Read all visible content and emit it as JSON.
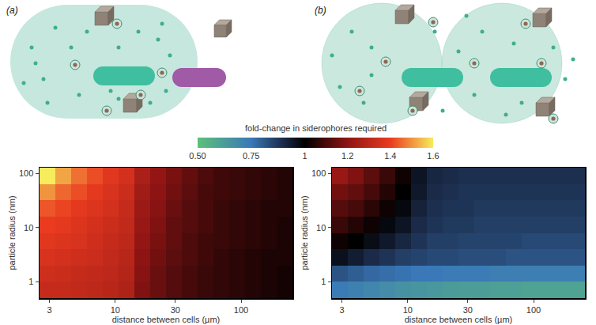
{
  "chart_data": [
    {
      "type": "heatmap",
      "title": "(a)",
      "x_label": "distance between cells (µm)",
      "y_label": "particle radius (nm)",
      "log": true,
      "x_bins": [
        2.5,
        3.34,
        4.46,
        5.96,
        7.96,
        10.6,
        14.2,
        19.0,
        25.3,
        33.8,
        45.2,
        60.3,
        80.6,
        108,
        144,
        192,
        256
      ],
      "y_bins": [
        0.5,
        1,
        2,
        4,
        8,
        16,
        32,
        64,
        128
      ],
      "xlim": [
        2.5,
        256
      ],
      "xticks": [
        3,
        10,
        30,
        100
      ],
      "ylim": [
        0.5,
        128
      ],
      "yticks": [
        1,
        10,
        100
      ],
      "z": [
        [
          1.32,
          1.32,
          1.31,
          1.3,
          1.29,
          1.27,
          1.18,
          1.15,
          1.12,
          1.1,
          1.08,
          1.07,
          1.06,
          1.05,
          1.04,
          1.03
        ],
        [
          1.34,
          1.33,
          1.32,
          1.31,
          1.3,
          1.28,
          1.19,
          1.15,
          1.12,
          1.1,
          1.08,
          1.07,
          1.06,
          1.05,
          1.04,
          1.03
        ],
        [
          1.36,
          1.35,
          1.34,
          1.33,
          1.31,
          1.29,
          1.2,
          1.16,
          1.13,
          1.11,
          1.09,
          1.07,
          1.06,
          1.05,
          1.04,
          1.04
        ],
        [
          1.38,
          1.37,
          1.36,
          1.34,
          1.32,
          1.3,
          1.21,
          1.17,
          1.14,
          1.11,
          1.09,
          1.08,
          1.07,
          1.06,
          1.05,
          1.04
        ],
        [
          1.4,
          1.39,
          1.37,
          1.35,
          1.33,
          1.31,
          1.22,
          1.18,
          1.14,
          1.12,
          1.1,
          1.08,
          1.07,
          1.06,
          1.05,
          1.04
        ],
        [
          1.43,
          1.41,
          1.39,
          1.37,
          1.35,
          1.32,
          1.23,
          1.19,
          1.15,
          1.12,
          1.1,
          1.08,
          1.07,
          1.06,
          1.05,
          1.05
        ],
        [
          1.5,
          1.45,
          1.42,
          1.39,
          1.36,
          1.33,
          1.24,
          1.2,
          1.16,
          1.13,
          1.1,
          1.09,
          1.08,
          1.07,
          1.06,
          1.05
        ],
        [
          1.6,
          1.52,
          1.46,
          1.42,
          1.38,
          1.35,
          1.26,
          1.21,
          1.17,
          1.14,
          1.11,
          1.09,
          1.08,
          1.07,
          1.06,
          1.05
        ]
      ],
      "colorbar": {
        "title": "fold-change in siderophores required",
        "range": [
          0.5,
          1.6
        ],
        "ticks": [
          {
            "value": 0.5,
            "label": "0.50"
          },
          0.75,
          1,
          1.2,
          1.4,
          1.6
        ]
      }
    },
    {
      "type": "heatmap",
      "title": "(b)",
      "x_label": "distance between cells (µm)",
      "y_label": "particle radius (nm)",
      "log": true,
      "x_bins": [
        2.5,
        3.34,
        4.46,
        5.96,
        7.96,
        10.6,
        14.2,
        19.0,
        25.3,
        33.8,
        45.2,
        60.3,
        80.6,
        108,
        144,
        192,
        256
      ],
      "y_bins": [
        0.5,
        1,
        2,
        4,
        8,
        16,
        32,
        64,
        128
      ],
      "xlim": [
        2.5,
        256
      ],
      "xticks": [
        3,
        10,
        30,
        100
      ],
      "ylim": [
        0.5,
        128
      ],
      "yticks": [
        1,
        10,
        100
      ],
      "z": [
        [
          0.74,
          0.72,
          0.7,
          0.68,
          0.66,
          0.65,
          0.64,
          0.63,
          0.62,
          0.62,
          0.61,
          0.61,
          0.6,
          0.6,
          0.6,
          0.6
        ],
        [
          0.82,
          0.8,
          0.78,
          0.77,
          0.76,
          0.75,
          0.75,
          0.74,
          0.74,
          0.74,
          0.73,
          0.73,
          0.73,
          0.73,
          0.73,
          0.73
        ],
        [
          0.96,
          0.93,
          0.9,
          0.88,
          0.86,
          0.85,
          0.84,
          0.84,
          0.83,
          0.83,
          0.83,
          0.82,
          0.82,
          0.82,
          0.82,
          0.82
        ],
        [
          1.02,
          1.0,
          0.97,
          0.94,
          0.91,
          0.88,
          0.86,
          0.86,
          0.85,
          0.85,
          0.85,
          0.85,
          0.84,
          0.84,
          0.84,
          0.84
        ],
        [
          1.08,
          1.05,
          1.02,
          0.98,
          0.95,
          0.9,
          0.88,
          0.87,
          0.87,
          0.86,
          0.86,
          0.86,
          0.86,
          0.86,
          0.86,
          0.86
        ],
        [
          1.12,
          1.1,
          1.06,
          1.02,
          0.98,
          0.92,
          0.89,
          0.88,
          0.88,
          0.87,
          0.87,
          0.87,
          0.87,
          0.87,
          0.87,
          0.87
        ],
        [
          1.16,
          1.14,
          1.1,
          1.05,
          1.0,
          0.94,
          0.9,
          0.89,
          0.88,
          0.88,
          0.88,
          0.88,
          0.88,
          0.88,
          0.88,
          0.88
        ],
        [
          1.22,
          1.18,
          1.13,
          1.08,
          1.02,
          0.95,
          0.91,
          0.9,
          0.89,
          0.89,
          0.89,
          0.89,
          0.89,
          0.89,
          0.89,
          0.89
        ]
      ]
    }
  ]
}
